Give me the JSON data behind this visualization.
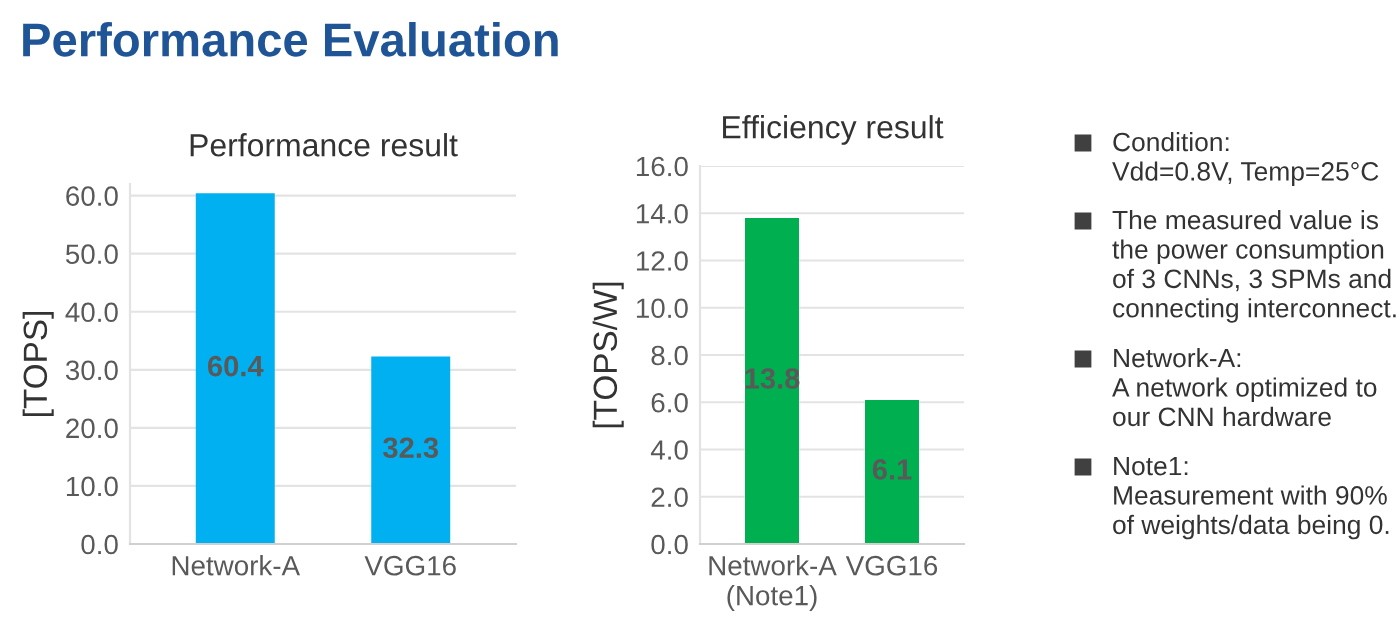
{
  "chart_data": [
    {
      "type": "other",
      "title": "Performance Evaluation"
    },
    {
      "type": "bar",
      "title": "Performance result",
      "ylabel": "[TOPS]",
      "categories": [
        "Network-A",
        "VGG16"
      ],
      "values": [
        60.4,
        32.3
      ],
      "color": "#00b0f0",
      "ylim": [
        0,
        62
      ],
      "yticks": [
        {
          "value": 0,
          "label": "0.0"
        },
        {
          "value": 10,
          "label": "10.0"
        },
        {
          "value": 20,
          "label": "20.0"
        },
        {
          "value": 30,
          "label": "30.0"
        },
        {
          "value": 40,
          "label": "40.0"
        },
        {
          "value": 50,
          "label": "50.0"
        },
        {
          "value": 60,
          "label": "60.0"
        }
      ],
      "grid": "y",
      "data_labels": true
    },
    {
      "type": "bar",
      "title": "Efficiency result",
      "ylabel": "[TOPS/W]",
      "categories": [
        "Network-A\n(Note1)",
        "VGG16"
      ],
      "values": [
        13.8,
        6.1
      ],
      "color": "#00b050",
      "ylim": [
        0,
        16
      ],
      "yticks": [
        {
          "value": 0,
          "label": "0.0"
        },
        {
          "value": 2,
          "label": "2.0"
        },
        {
          "value": 4,
          "label": "4.0"
        },
        {
          "value": 6,
          "label": "6.0"
        },
        {
          "value": 8,
          "label": "8.0"
        },
        {
          "value": 10,
          "label": "10.0"
        },
        {
          "value": 12,
          "label": "12.0"
        },
        {
          "value": 14,
          "label": "14.0"
        },
        {
          "value": 16,
          "label": "16.0"
        }
      ],
      "grid": "y",
      "data_labels": true
    },
    {
      "type": "other",
      "annotations": [
        "Condition:\nVdd=0.8V, Temp=25°C",
        "The measured value is\nthe power consumption\nof 3 CNNs, 3 SPMs and\nconnecting interconnect.",
        "Network-A:\nA network optimized to\nour CNN hardware",
        "Note1:\nMeasurement with 90%\nof weights/data being 0."
      ]
    }
  ]
}
